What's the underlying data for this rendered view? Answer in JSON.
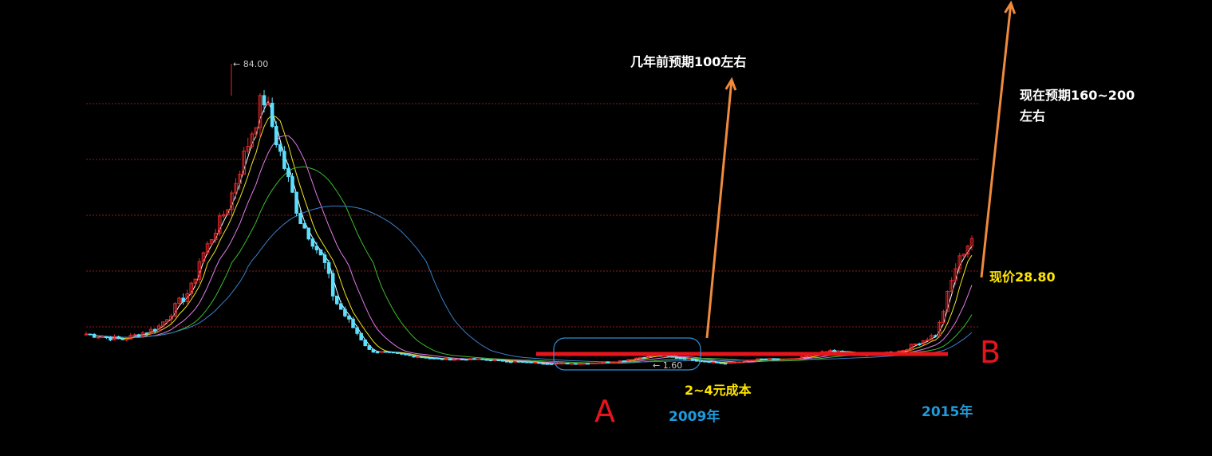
{
  "colors": {
    "background": "#000000",
    "grid": "#8b1a1a",
    "up_candle": "#e8282a",
    "down_candle": "#5ce0ff",
    "ma_white": "#ffffff",
    "ma_yellow": "#f2e61c",
    "ma_magenta": "#e07be8",
    "ma_green": "#3dbb2e",
    "ma_blue": "#3a7fc8",
    "arrow": "#f08a3c",
    "support_line": "#e8141c",
    "ellipse": "#2e8fd8"
  },
  "annotations": {
    "high_label": "84.00",
    "low_label": "1.60",
    "prev_expectation": "几年前预期100左右",
    "now_expectation_line1": "现在预期160~200",
    "now_expectation_line2": "左右",
    "current_price": "现价28.80",
    "cost": "2~4元成本",
    "point_a": "A",
    "point_b": "B",
    "year_2009": "2009年",
    "year_2015": "2015年"
  },
  "chart_data": {
    "type": "line",
    "ylim": [
      0,
      90
    ],
    "x": [
      0,
      4,
      8,
      12,
      16,
      20,
      24,
      28,
      32,
      36,
      40,
      44,
      48,
      52,
      56,
      60,
      64,
      68,
      72,
      76,
      80,
      84,
      88,
      92,
      96,
      100
    ],
    "series": [
      {
        "values": [
          8,
          7,
          9,
          16,
          40,
          84,
          36,
          14,
          5,
          4,
          3,
          3,
          2.5,
          2,
          2,
          2.5,
          4,
          3,
          2,
          3,
          3,
          5,
          4,
          5,
          8,
          28.8
        ]
      }
    ]
  }
}
